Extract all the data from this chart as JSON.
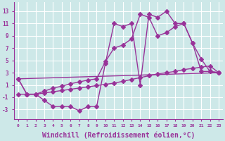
{
  "bg_color": "#cde8e8",
  "grid_color": "#b0d8d8",
  "line_color": "#993399",
  "markersize": 3,
  "linewidth": 1.0,
  "xlabel": "Windchill (Refroidissement éolien,°C)",
  "xlabel_fontsize": 7,
  "ylabel_ticks": [
    -3,
    -1,
    1,
    3,
    5,
    7,
    9,
    11,
    13
  ],
  "xtick_labels": [
    "0",
    "1",
    "2",
    "3",
    "4",
    "5",
    "6",
    "7",
    "8",
    "9",
    "10",
    "11",
    "12",
    "13",
    "14",
    "15",
    "16",
    "17",
    "18",
    "19",
    "20",
    "21",
    "22",
    "23"
  ],
  "xlim": [
    -0.5,
    23.5
  ],
  "ylim": [
    -4.5,
    14.5
  ],
  "series": [
    {
      "x": [
        0,
        1,
        2,
        3,
        4,
        5,
        6,
        7,
        8,
        9,
        10,
        11,
        12,
        13,
        14,
        15,
        16,
        17,
        18,
        19,
        20,
        21,
        22,
        23
      ],
      "y": [
        2,
        -0.5,
        -0.5,
        -1.5,
        -2.5,
        -2.5,
        -2.5,
        -3.2,
        -2.5,
        -2.5,
        4.5,
        11,
        10.5,
        11,
        1.0,
        12.5,
        12,
        13,
        11.0,
        11,
        7.8,
        5.2,
        3.2,
        3.0
      ]
    },
    {
      "x": [
        0,
        1,
        2,
        3,
        4,
        5,
        6,
        7,
        8,
        9,
        10,
        11,
        12,
        13,
        14,
        15,
        16,
        17,
        18,
        19,
        20,
        21,
        22,
        23
      ],
      "y": [
        2,
        -0.5,
        -0.5,
        0.0,
        0.5,
        0.8,
        1.2,
        1.5,
        1.8,
        2.0,
        4.8,
        7.0,
        7.5,
        8.5,
        12.5,
        12,
        9.0,
        9.5,
        10.5,
        11.0,
        7.8,
        3.2,
        3.2,
        3.0
      ]
    },
    {
      "x": [
        0,
        23
      ],
      "y": [
        2,
        3.0
      ]
    },
    {
      "x": [
        0,
        1,
        2,
        3,
        4,
        5,
        6,
        7,
        8,
        9,
        10,
        11,
        12,
        13,
        14,
        15,
        16,
        17,
        18,
        19,
        20,
        21,
        22,
        23
      ],
      "y": [
        -0.5,
        -0.5,
        -0.5,
        -0.3,
        -0.1,
        0.1,
        0.3,
        0.5,
        0.7,
        0.9,
        1.1,
        1.3,
        1.6,
        1.9,
        2.2,
        2.5,
        2.8,
        3.0,
        3.2,
        3.5,
        3.7,
        3.9,
        4.1,
        3.0
      ]
    }
  ]
}
